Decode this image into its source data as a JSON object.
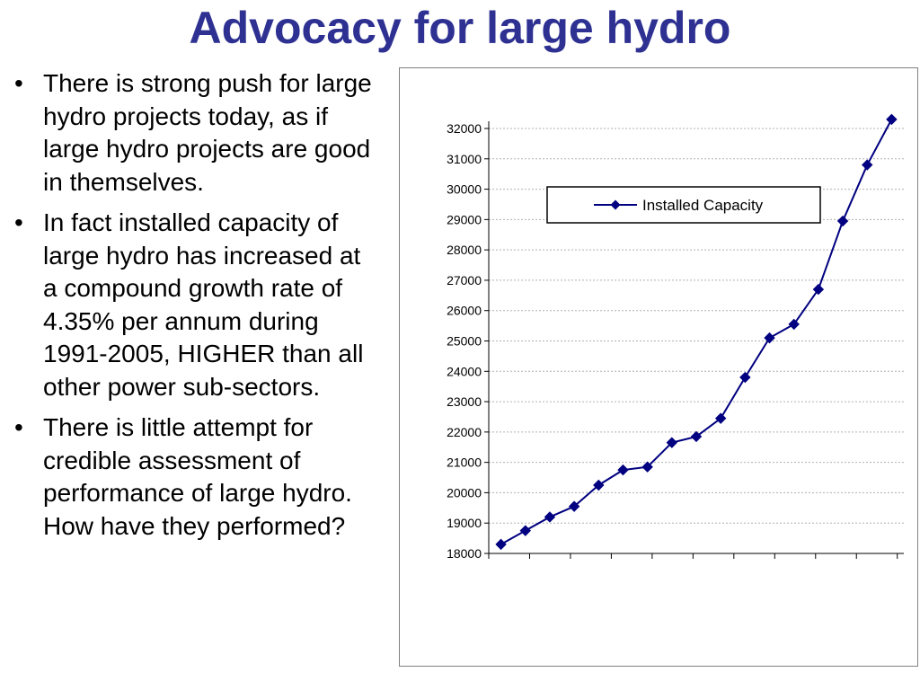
{
  "slide": {
    "title": "Advocacy for large hydro",
    "bullets": [
      "There is strong push for large hydro projects today, as if large hydro projects are good in themselves.",
      "In fact installed capacity of large hydro has increased at a compound growth rate of 4.35% per annum during 1991-2005, HIGHER than all other power sub-sectors.",
      "There is little attempt for credible assessment of performance of large hydro. How have they performed?"
    ],
    "bullet_glyph": "•"
  },
  "colors": {
    "title": "#2e3192",
    "series": "#000080",
    "grid": "#b0b0b0"
  },
  "chart_data": {
    "type": "line",
    "title": "",
    "xlabel": "",
    "ylabel": "",
    "ylim": [
      18000,
      32000
    ],
    "ytick_step": 1000,
    "grid": true,
    "legend_position": "top-center",
    "x_tick_count": 9,
    "series": [
      {
        "name": "Installed Capacity",
        "marker": "diamond",
        "values": [
          18300,
          18750,
          19200,
          19550,
          20250,
          20750,
          20850,
          21650,
          21850,
          22450,
          23800,
          25100,
          25550,
          26700,
          28950,
          30800,
          32300
        ]
      }
    ]
  }
}
